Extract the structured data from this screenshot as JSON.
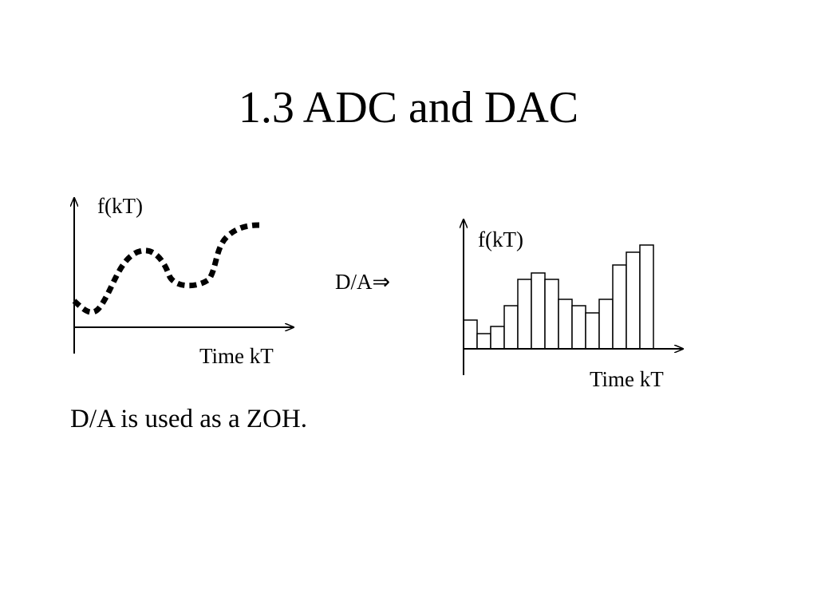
{
  "title": "1.3 ADC and DAC",
  "left_diagram": {
    "y_label": "f(kT)",
    "x_label": "Time kT"
  },
  "arrow_label": "D/A⇒",
  "right_diagram": {
    "y_label": "f(kT)",
    "x_label": "Time kT"
  },
  "caption": "D/A is used as a ZOH."
}
